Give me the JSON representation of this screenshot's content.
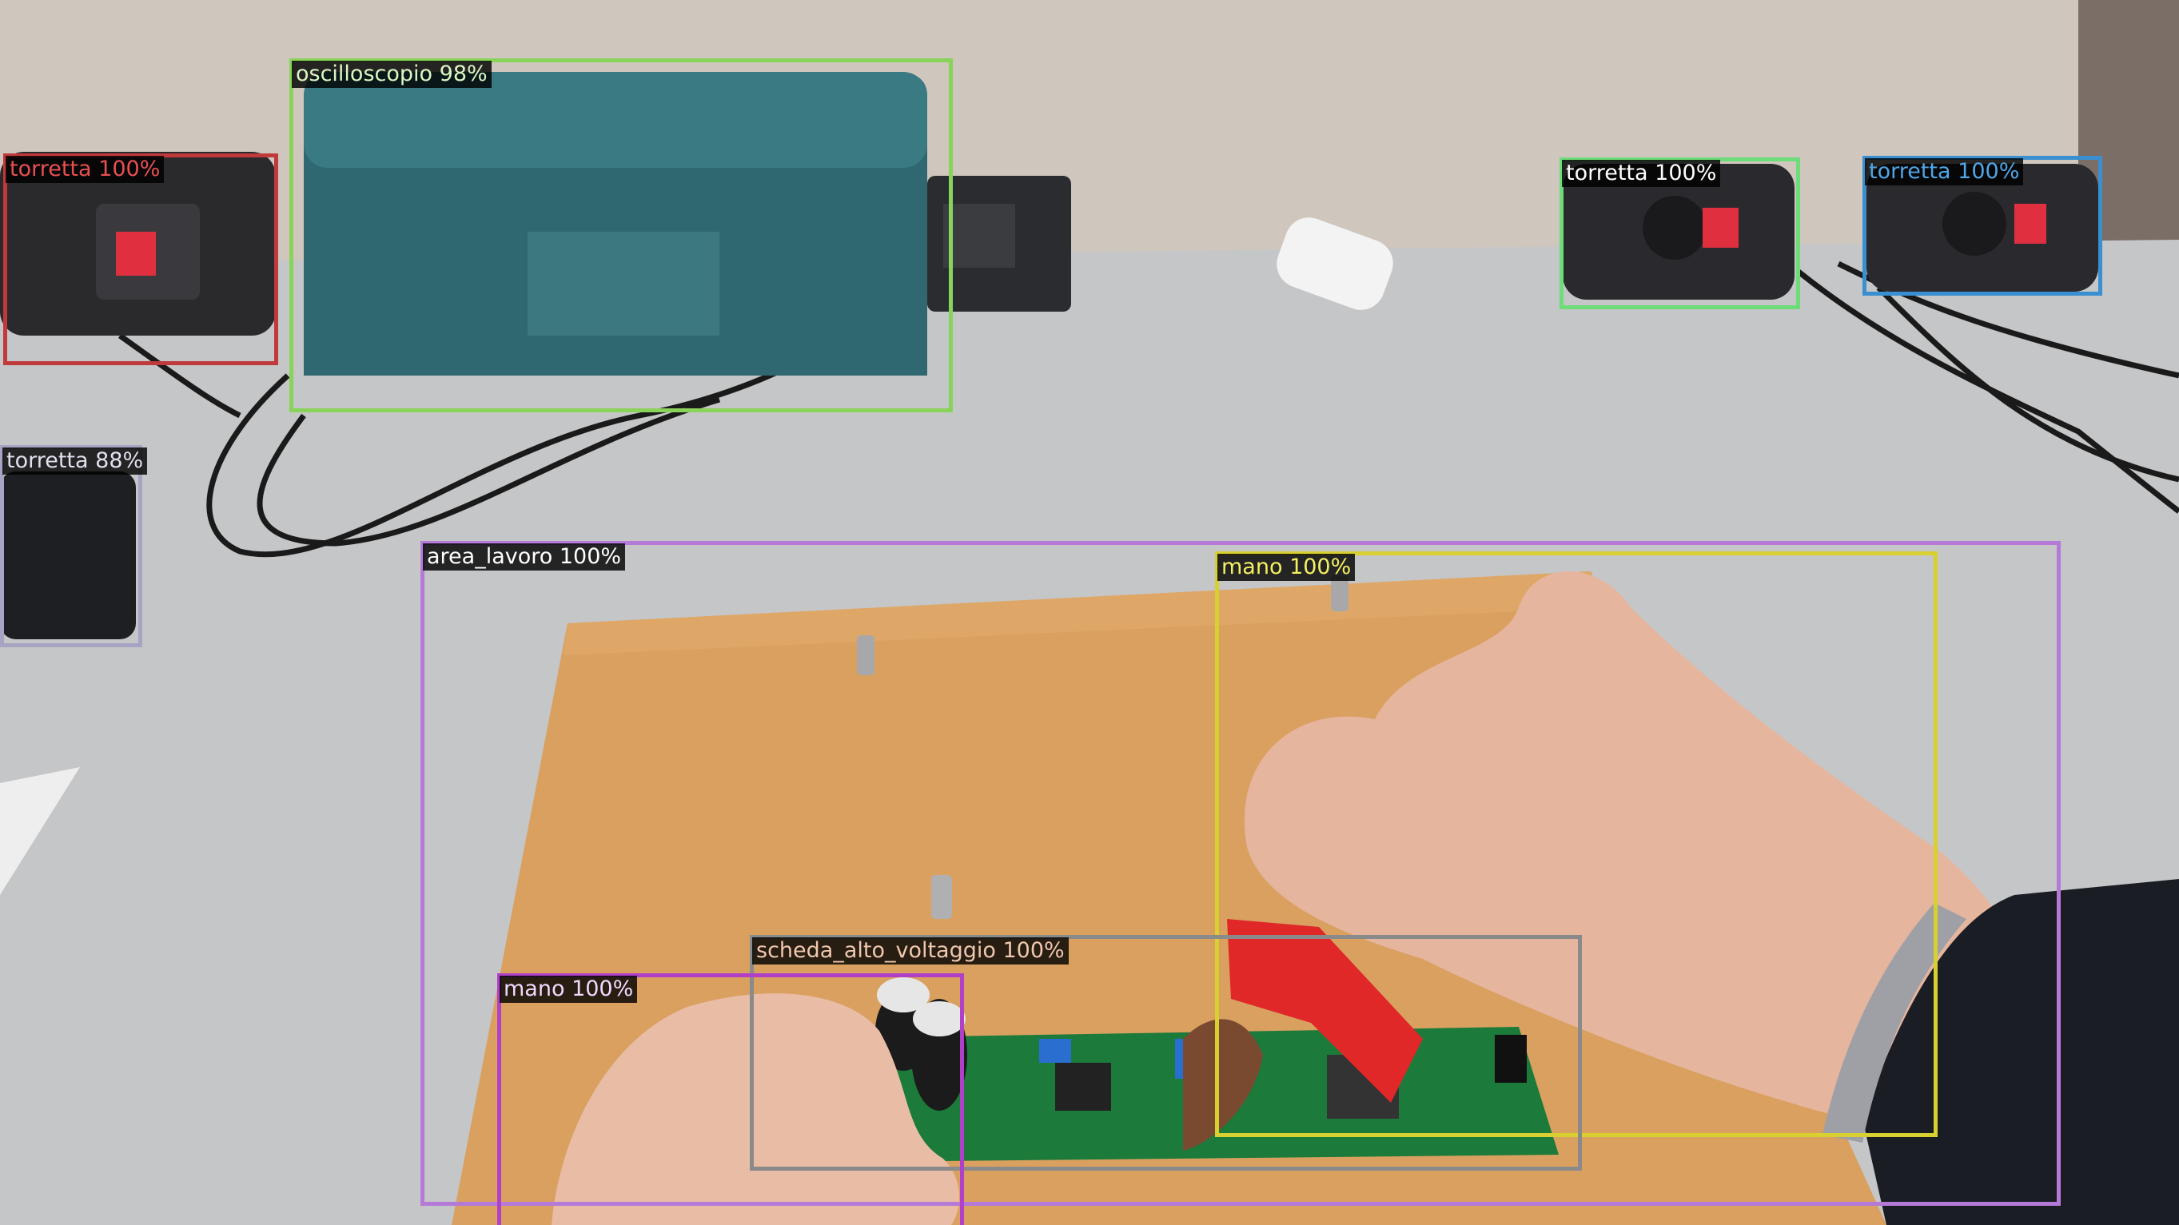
{
  "scene": {
    "description_colors": {
      "wall": "#cfc6bd",
      "table": "#c6c7c8",
      "board": "#d9a060",
      "pcb": "#1c7a3a",
      "probe": "#e02020",
      "oscilloscope": "#2f6870",
      "skin": "#e8b8a0"
    }
  },
  "detections": [
    {
      "id": "torretta-1",
      "label": "torretta",
      "score": "100%",
      "color": "#c0393b"
    },
    {
      "id": "oscilloscopio",
      "label": "oscilloscopio",
      "score": "98%",
      "color": "#8ad35a"
    },
    {
      "id": "torretta-2",
      "label": "torretta",
      "score": "100%",
      "color": "#6fdc7a"
    },
    {
      "id": "torretta-3",
      "label": "torretta",
      "score": "100%",
      "color": "#3a8fd0"
    },
    {
      "id": "torretta-4",
      "label": "torretta",
      "score": "88%",
      "color": "#a6a4c2"
    },
    {
      "id": "area-lavoro",
      "label": "area_lavoro",
      "score": "100%",
      "color": "#b57ad8"
    },
    {
      "id": "mano-1",
      "label": "mano",
      "score": "100%",
      "color": "#d8d030"
    },
    {
      "id": "scheda",
      "label": "scheda_alto_voltaggio",
      "score": "100%",
      "color": "#8a8a8a"
    },
    {
      "id": "mano-2",
      "label": "mano",
      "score": "100%",
      "color": "#b040c8"
    }
  ]
}
